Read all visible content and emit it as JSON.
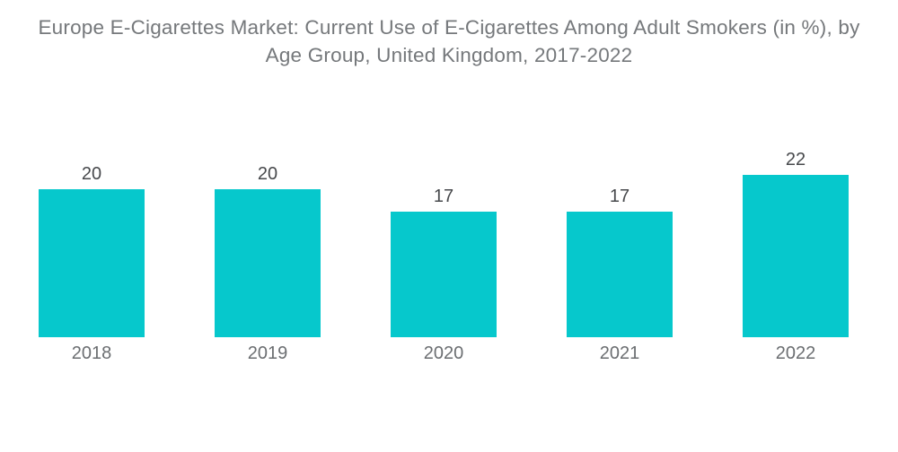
{
  "page": {
    "background_color": "#ffffff"
  },
  "title": {
    "text": "Europe E-Cigarettes Market: Current Use of E-Cigarettes Among Adult Smokers (in %), by Age Group, United Kingdom, 2017-2022",
    "color": "#75787b"
  },
  "chart_data": {
    "type": "bar",
    "title": "Europe E-Cigarettes Market: Current Use of E-Cigarettes Among Adult Smokers (in %), by Age Group, United Kingdom, 2017-2022",
    "categories": [
      "2018",
      "2019",
      "2020",
      "2021",
      "2022"
    ],
    "values": [
      20,
      20,
      17,
      17,
      22
    ],
    "xlabel": "",
    "ylabel": "",
    "ylim": [
      0,
      25
    ],
    "grid": false,
    "legend": false,
    "value_labels_shown": true,
    "bar_color": "#06c8cc",
    "value_label_color": "#47494c",
    "axis_label_color": "#6b6e71"
  }
}
